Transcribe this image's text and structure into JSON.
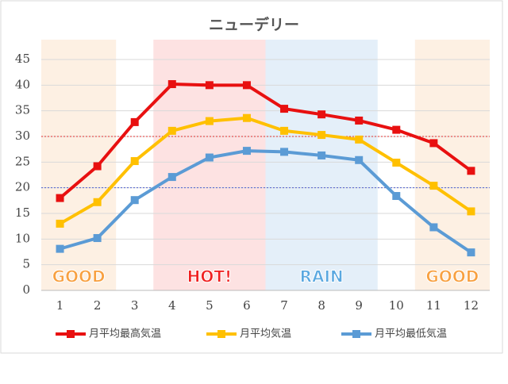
{
  "chart_data": {
    "type": "line",
    "title": "ニューデリー",
    "categories": [
      "1",
      "2",
      "3",
      "4",
      "5",
      "6",
      "7",
      "8",
      "9",
      "10",
      "11",
      "12"
    ],
    "series": [
      {
        "name": "月平均最高気温",
        "color": "#e81010",
        "values": [
          18,
          24.2,
          32.8,
          40.2,
          40,
          40,
          35.4,
          34.3,
          33.1,
          31.3,
          28.7,
          23.3
        ]
      },
      {
        "name": "月平均気温",
        "color": "#ffc000",
        "values": [
          13,
          17.2,
          25.2,
          31.1,
          33,
          33.6,
          31.1,
          30.3,
          29.4,
          24.9,
          20.4,
          15.4
        ]
      },
      {
        "name": "月平均最低気温",
        "color": "#5b9bd5",
        "values": [
          8.1,
          10.2,
          17.6,
          22.1,
          25.9,
          27.2,
          27,
          26.3,
          25.4,
          18.4,
          12.3,
          7.4
        ]
      }
    ],
    "ylim": [
      0,
      45
    ],
    "yticks": [
      0,
      5,
      10,
      15,
      20,
      25,
      30,
      35,
      40,
      45
    ],
    "grid": true,
    "regions": [
      {
        "label": "GOOD",
        "from": 1,
        "to": 2,
        "color": "#fdf0e3",
        "text_color": "#f8a040"
      },
      {
        "label": "HOT!",
        "from": 4,
        "to": 6,
        "color": "#fde2e2",
        "text_color": "#f02020"
      },
      {
        "label": "RAIN",
        "from": 7,
        "to": 9,
        "color": "#e4eff9",
        "text_color": "#5aa8e0"
      },
      {
        "label": "GOOD",
        "from": 11,
        "to": 12,
        "color": "#fdf0e3",
        "text_color": "#f8a040"
      }
    ],
    "reference_lines": [
      {
        "value": 30,
        "color": "#e03030"
      },
      {
        "value": 20,
        "color": "#5060d0"
      }
    ],
    "legend": "bottom"
  }
}
